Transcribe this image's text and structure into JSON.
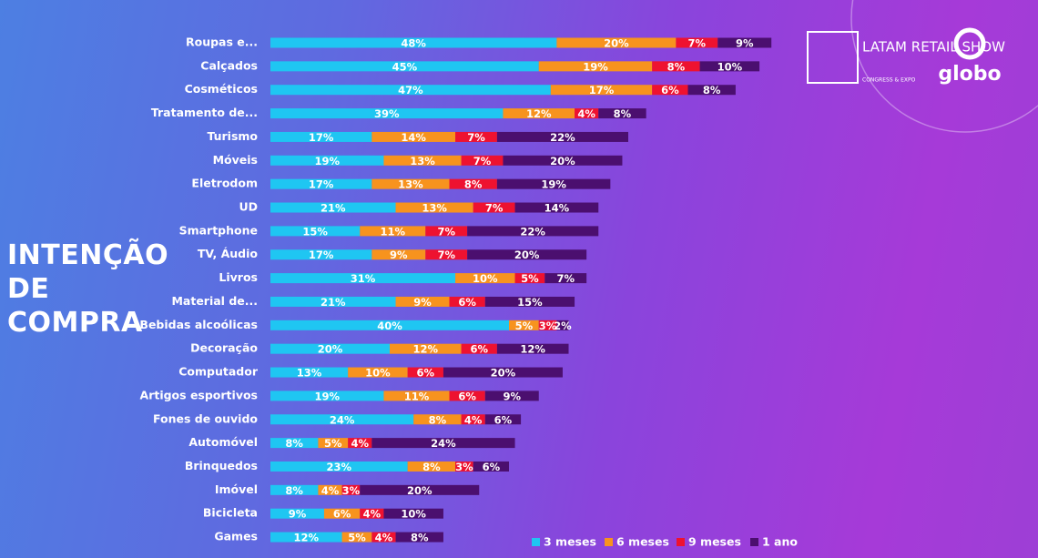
{
  "chart_data": {
    "type": "stacked-bar-horizontal",
    "title": "INTENÇÃO DE COMPRA",
    "categories": [
      "Roupas e...",
      "Calçados",
      "Cosméticos",
      "Tratamento de...",
      "Turismo",
      "Móveis",
      "Eletrodom",
      "UD",
      "Smartphone",
      "TV, Áudio",
      "Livros",
      "Material de...",
      "Bebidas alcoólicas",
      "Decoração",
      "Computador",
      "Artigos esportivos",
      "Fones de ouvido",
      "Automóvel",
      "Brinquedos",
      "Imóvel",
      "Bicicleta",
      "Games"
    ],
    "series": [
      {
        "name": "3 meses",
        "color": "#1fc6f2",
        "values": [
          48,
          45,
          47,
          39,
          17,
          19,
          17,
          21,
          15,
          17,
          31,
          21,
          40,
          20,
          13,
          19,
          24,
          8,
          23,
          8,
          9,
          12
        ],
        "value_labels": [
          "48%",
          "45%",
          "47%",
          "39%",
          "17%",
          "19%",
          "17%",
          "21%",
          "15%",
          "17%",
          "31%",
          "21%",
          "40%",
          "20%",
          "13%",
          "19%",
          "24%",
          "8%",
          "23%",
          "8%",
          "9%",
          "12%"
        ]
      },
      {
        "name": "6 meses",
        "color": "#f7931e",
        "values": [
          20,
          19,
          17,
          12,
          14,
          13,
          13,
          13,
          11,
          9,
          10,
          9,
          5,
          12,
          10,
          11,
          8,
          5,
          8,
          4,
          6,
          5
        ],
        "value_labels": [
          "20%",
          "19%",
          "17%",
          "12%",
          "14%",
          "13%",
          "13%",
          "13%",
          "11%",
          "9%",
          "10%",
          "9%",
          "5%",
          "12%",
          "10%",
          "11%",
          "8%",
          "5%",
          "8%",
          "4%",
          "6%",
          "5%"
        ]
      },
      {
        "name": "9 meses",
        "color": "#ee1230",
        "values": [
          7,
          8,
          6,
          4,
          7,
          7,
          8,
          7,
          7,
          7,
          5,
          6,
          3,
          6,
          6,
          6,
          4,
          4,
          3,
          3,
          4,
          4
        ],
        "value_labels": [
          "7%",
          "8%",
          "6%",
          "4%",
          "7%",
          "7%",
          "8%",
          "7%",
          "7%",
          "7%",
          "5%",
          "6%",
          "3%",
          "6%",
          "6%",
          "6%",
          "4%",
          "4%",
          "3%",
          "3%",
          "4%",
          "4%"
        ]
      },
      {
        "name": "1 ano",
        "color": "#4b0f6f",
        "values": [
          9,
          10,
          8,
          8,
          22,
          20,
          19,
          14,
          22,
          20,
          7,
          15,
          2,
          12,
          20,
          9,
          6,
          24,
          6,
          20,
          10,
          8
        ],
        "value_labels": [
          "9%",
          "10%",
          "8%",
          "8%",
          "22%",
          "20%",
          "19%",
          "14%",
          "22%",
          "20%",
          "7%",
          "15%",
          "2%",
          "12%",
          "20%",
          "9%",
          "6%",
          "24%",
          "6%",
          "20%",
          "10%",
          "8%"
        ]
      }
    ],
    "legend": "bottom-right"
  },
  "logos": {
    "event": "LATAM RETAIL SHOW",
    "event_sub": "CONGRESS & EXPO",
    "broadcaster": "globo"
  }
}
